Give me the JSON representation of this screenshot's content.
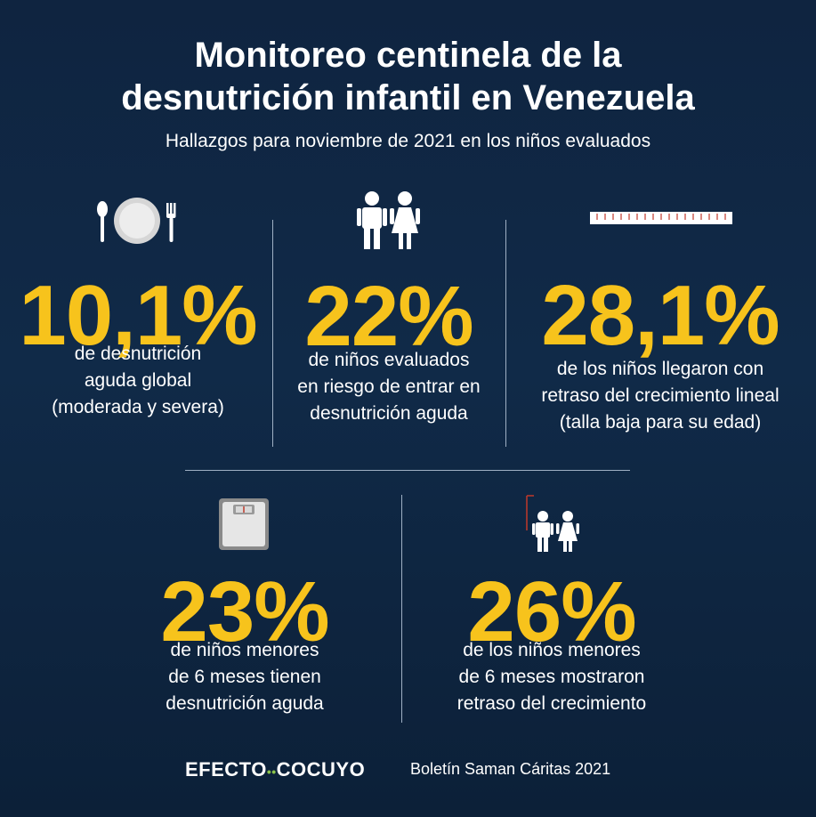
{
  "title": {
    "line1": "Monitoreo centinela de la",
    "line2": "desnutrición infantil en Venezuela"
  },
  "subtitle": "Hallazgos para noviembre de 2021 en los niños evaluados",
  "colors": {
    "accent": "#f7c31c",
    "background": "#102a48",
    "text": "#ffffff"
  },
  "stats": [
    {
      "icon": "plate-cutlery-icon",
      "value": "10,1%",
      "lines": [
        "de desnutrición",
        "aguda global",
        "(moderada y severa)"
      ]
    },
    {
      "icon": "children-icon",
      "value": "22%",
      "lines": [
        "de niños evaluados",
        "en riesgo de entrar en",
        "desnutrición aguda"
      ]
    },
    {
      "icon": "ruler-icon",
      "value": "28,1%",
      "lines": [
        "de los niños llegaron con",
        "retraso del crecimiento lineal",
        "(talla baja para su edad)"
      ]
    },
    {
      "icon": "scale-icon",
      "value": "23%",
      "lines": [
        "de niños menores",
        "de 6 meses tienen",
        "desnutrición aguda"
      ]
    },
    {
      "icon": "children-height-icon",
      "value": "26%",
      "lines": [
        "de los niños menores",
        "de 6 meses mostraron",
        "retraso del crecimiento"
      ]
    }
  ],
  "footer": {
    "brand_left": "EFECTO",
    "brand_dots": "••",
    "brand_right": "COCUYO",
    "source": "Boletín Saman Cáritas 2021"
  }
}
